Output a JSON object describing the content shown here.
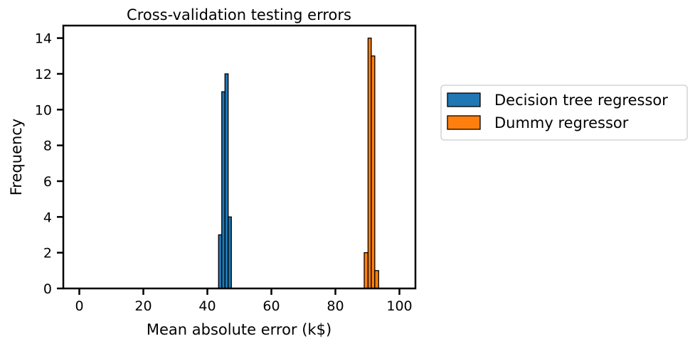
{
  "chart_data": {
    "type": "bar",
    "title": "Cross-validation testing errors",
    "xlabel": "Mean absolute error (k$)",
    "ylabel": "Frequency",
    "xlim": [
      -5,
      105
    ],
    "ylim": [
      0,
      14.7
    ],
    "xticks": [
      0,
      20,
      40,
      60,
      80,
      100
    ],
    "yticks": [
      0,
      2,
      4,
      6,
      8,
      10,
      12,
      14
    ],
    "grid": false,
    "legend_position": "outside-right",
    "series": [
      {
        "name": "Decision tree regressor",
        "color": "#1f77b4",
        "bins": [
          {
            "x0": 43.5,
            "x1": 44.5,
            "count": 3
          },
          {
            "x0": 44.5,
            "x1": 45.5,
            "count": 11
          },
          {
            "x0": 45.5,
            "x1": 46.5,
            "count": 12
          },
          {
            "x0": 46.5,
            "x1": 47.5,
            "count": 4
          }
        ]
      },
      {
        "name": "Dummy regressor",
        "color": "#ff7f0e",
        "bins": [
          {
            "x0": 89.0,
            "x1": 90.2,
            "count": 2
          },
          {
            "x0": 90.2,
            "x1": 91.2,
            "count": 14
          },
          {
            "x0": 91.2,
            "x1": 92.3,
            "count": 13
          },
          {
            "x0": 92.3,
            "x1": 93.5,
            "count": 1
          }
        ]
      }
    ]
  }
}
